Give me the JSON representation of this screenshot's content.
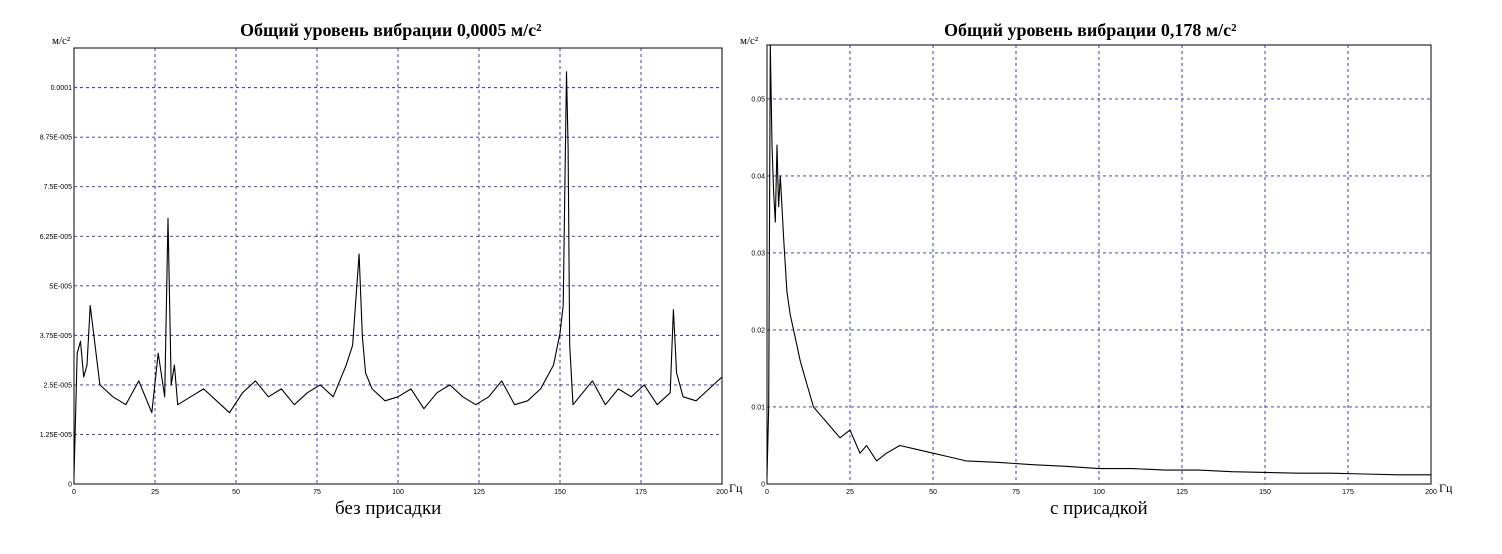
{
  "chart_data": [
    {
      "type": "line",
      "title": "Общий уровень вибрации 0,0005 м/с²",
      "caption": "без присадки",
      "ylabel": "м/с²",
      "xlabel": "Гц",
      "xlim": [
        0,
        200
      ],
      "ylim": [
        0,
        0.00011
      ],
      "x_ticks": [
        "0",
        "25",
        "50",
        "75",
        "100",
        "125",
        "150",
        "175",
        "200"
      ],
      "y_ticks": [
        {
          "value": 0,
          "label": "0"
        },
        {
          "value": 1.25e-05,
          "label": "1.25E-005"
        },
        {
          "value": 2.5e-05,
          "label": "2.5E-005"
        },
        {
          "value": 3.75e-05,
          "label": "3.75E-005"
        },
        {
          "value": 5e-05,
          "label": "5E-005"
        },
        {
          "value": 6.25e-05,
          "label": "6.25E-005"
        },
        {
          "value": 7.5e-05,
          "label": "7.5E-005"
        },
        {
          "value": 8.75e-05,
          "label": "8.75E-005"
        },
        {
          "value": 0.0001,
          "label": "0.0001"
        }
      ],
      "grid": true,
      "series": [
        {
          "x": [
            0,
            1,
            2,
            3,
            4,
            5,
            8,
            12,
            16,
            20,
            24,
            26,
            28,
            29,
            30,
            31,
            32,
            36,
            40,
            44,
            48,
            52,
            56,
            60,
            64,
            68,
            72,
            76,
            80,
            84,
            86,
            88,
            89,
            90,
            92,
            96,
            100,
            104,
            108,
            112,
            116,
            120,
            124,
            128,
            132,
            136,
            140,
            144,
            148,
            150,
            151,
            152,
            152.5,
            153,
            154,
            156,
            160,
            164,
            168,
            172,
            176,
            180,
            184,
            185,
            186,
            188,
            192,
            196,
            200
          ],
          "y": [
            2e-06,
            3.3e-05,
            3.6e-05,
            2.7e-05,
            3e-05,
            4.5e-05,
            2.5e-05,
            2.2e-05,
            2e-05,
            2.6e-05,
            1.8e-05,
            3.3e-05,
            2.2e-05,
            6.7e-05,
            2.5e-05,
            3e-05,
            2e-05,
            2.2e-05,
            2.4e-05,
            2.1e-05,
            1.8e-05,
            2.3e-05,
            2.6e-05,
            2.2e-05,
            2.4e-05,
            2e-05,
            2.3e-05,
            2.5e-05,
            2.2e-05,
            3e-05,
            3.5e-05,
            5.8e-05,
            3.7e-05,
            2.8e-05,
            2.4e-05,
            2.1e-05,
            2.2e-05,
            2.4e-05,
            1.9e-05,
            2.3e-05,
            2.5e-05,
            2.2e-05,
            2e-05,
            2.2e-05,
            2.6e-05,
            2e-05,
            2.1e-05,
            2.4e-05,
            3e-05,
            3.8e-05,
            4.5e-05,
            0.000104,
            8.5e-05,
            3.5e-05,
            2e-05,
            2.2e-05,
            2.6e-05,
            2e-05,
            2.4e-05,
            2.2e-05,
            2.5e-05,
            2e-05,
            2.3e-05,
            4.4e-05,
            2.8e-05,
            2.2e-05,
            2.1e-05,
            2.4e-05,
            2.7e-05
          ]
        }
      ]
    },
    {
      "type": "line",
      "title": "Общий уровень вибрации 0,178 м/с²",
      "caption": "с присадкой",
      "ylabel": "м/с²",
      "xlabel": "Гц",
      "xlim": [
        0,
        200
      ],
      "ylim": [
        0,
        0.057
      ],
      "x_ticks": [
        "0",
        "25",
        "50",
        "75",
        "100",
        "125",
        "150",
        "175",
        "200"
      ],
      "y_ticks": [
        {
          "value": 0,
          "label": "0"
        },
        {
          "value": 0.01,
          "label": "0.01"
        },
        {
          "value": 0.02,
          "label": "0.02"
        },
        {
          "value": 0.03,
          "label": "0.03"
        },
        {
          "value": 0.04,
          "label": "0.04"
        },
        {
          "value": 0.05,
          "label": "0.05"
        }
      ],
      "grid": true,
      "series": [
        {
          "x": [
            0,
            0.5,
            1,
            1.5,
            2,
            2.5,
            3,
            3.5,
            4,
            5,
            6,
            7,
            8,
            10,
            12,
            14,
            16,
            18,
            20,
            22,
            25,
            28,
            30,
            33,
            36,
            40,
            45,
            50,
            55,
            60,
            70,
            80,
            90,
            100,
            110,
            120,
            130,
            140,
            150,
            160,
            170,
            180,
            190,
            200
          ],
          "y": [
            0.001,
            0.01,
            0.057,
            0.044,
            0.038,
            0.034,
            0.044,
            0.036,
            0.04,
            0.032,
            0.025,
            0.022,
            0.02,
            0.016,
            0.013,
            0.01,
            0.009,
            0.008,
            0.007,
            0.006,
            0.007,
            0.004,
            0.005,
            0.003,
            0.004,
            0.005,
            0.0045,
            0.004,
            0.0035,
            0.003,
            0.0028,
            0.0025,
            0.0023,
            0.002,
            0.002,
            0.0018,
            0.0018,
            0.0016,
            0.0015,
            0.0014,
            0.0014,
            0.0013,
            0.0012,
            0.0012
          ]
        }
      ]
    }
  ]
}
